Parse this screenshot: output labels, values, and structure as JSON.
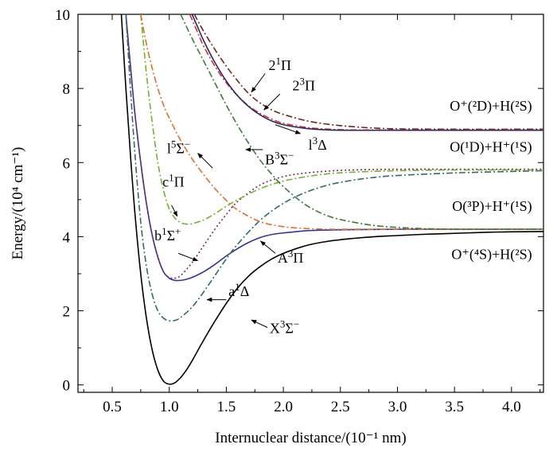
{
  "chart_data": {
    "type": "line",
    "xlabel": "Internuclear distance/(10⁻¹ nm)",
    "ylabel": "Energy/(10⁴ cm⁻¹)",
    "xlim": [
      0.2,
      4.28
    ],
    "ylim": [
      -0.2,
      10
    ],
    "xticks": [
      0.5,
      1.0,
      1.5,
      2.0,
      2.5,
      3.0,
      3.5,
      4.0
    ],
    "xtick_labels": [
      "0.5",
      "1.0",
      "1.5",
      "2.0",
      "2.5",
      "3.0",
      "3.5",
      "4.0"
    ],
    "yticks": [
      0,
      2,
      4,
      6,
      8,
      10
    ],
    "ytick_labels": [
      "0",
      "2",
      "4",
      "6",
      "8",
      "10"
    ],
    "grid": false,
    "series": [
      {
        "name": "X³Σ⁻",
        "color": "#000000",
        "style": "solid",
        "x": [
          0.58,
          0.62,
          0.66,
          0.7,
          0.75,
          0.8,
          0.85,
          0.9,
          0.95,
          1.0,
          1.05,
          1.1,
          1.15,
          1.2,
          1.3,
          1.4,
          1.5,
          1.6,
          1.7,
          1.8,
          1.9,
          2.0,
          2.2,
          2.4,
          2.6,
          2.8,
          3.0,
          3.2,
          3.4,
          3.6,
          3.8,
          4.0,
          4.28
        ],
        "y": [
          10.0,
          8.0,
          6.2,
          4.6,
          3.0,
          1.8,
          0.95,
          0.4,
          0.1,
          0.02,
          0.06,
          0.2,
          0.4,
          0.65,
          1.2,
          1.72,
          2.2,
          2.62,
          2.95,
          3.2,
          3.4,
          3.55,
          3.76,
          3.88,
          3.95,
          4.0,
          4.03,
          4.06,
          4.08,
          4.1,
          4.12,
          4.13,
          4.14
        ]
      },
      {
        "name": "A³Π",
        "color": "#33339a",
        "style": "solid",
        "x": [
          0.62,
          0.66,
          0.7,
          0.75,
          0.8,
          0.85,
          0.9,
          0.95,
          1.0,
          1.05,
          1.1,
          1.15,
          1.2,
          1.3,
          1.4,
          1.5,
          1.6,
          1.7,
          1.8,
          1.9,
          2.0,
          2.2,
          2.4,
          2.6,
          3.0,
          3.5,
          4.0,
          4.28
        ],
        "y": [
          10.0,
          8.6,
          7.3,
          6.0,
          4.9,
          4.05,
          3.45,
          3.05,
          2.88,
          2.82,
          2.82,
          2.85,
          2.9,
          3.05,
          3.25,
          3.48,
          3.68,
          3.85,
          3.98,
          4.06,
          4.1,
          4.16,
          4.18,
          4.19,
          4.2,
          4.2,
          4.2,
          4.2
        ]
      },
      {
        "name": "b¹Σ⁺",
        "color": "#7a2a5a",
        "style": "dotted",
        "x": [
          0.62,
          0.66,
          0.7,
          0.75,
          0.8,
          0.85,
          0.9,
          0.95,
          1.0,
          1.05,
          1.1,
          1.2,
          1.3,
          1.4,
          1.5,
          1.6,
          1.8,
          2.0,
          2.2,
          2.4,
          2.6,
          3.0,
          3.5,
          4.0,
          4.28
        ],
        "y": [
          10.0,
          8.6,
          7.3,
          6.0,
          4.9,
          4.05,
          3.45,
          3.05,
          2.9,
          2.88,
          2.95,
          3.3,
          3.75,
          4.2,
          4.6,
          4.95,
          5.4,
          5.62,
          5.72,
          5.77,
          5.8,
          5.82,
          5.82,
          5.82,
          5.82
        ]
      },
      {
        "name": "a¹Δ",
        "color": "#2e6b6b",
        "style": "dashdot",
        "x": [
          0.62,
          0.66,
          0.7,
          0.75,
          0.8,
          0.85,
          0.9,
          0.95,
          1.0,
          1.05,
          1.1,
          1.2,
          1.3,
          1.4,
          1.5,
          1.6,
          1.8,
          2.0,
          2.2,
          2.4,
          2.6,
          2.8,
          3.0,
          3.5,
          4.0,
          4.28
        ],
        "y": [
          10.0,
          8.0,
          6.2,
          4.4,
          3.2,
          2.45,
          2.0,
          1.8,
          1.73,
          1.74,
          1.82,
          2.1,
          2.5,
          2.95,
          3.4,
          3.8,
          4.45,
          4.9,
          5.2,
          5.4,
          5.52,
          5.6,
          5.65,
          5.72,
          5.76,
          5.78
        ]
      },
      {
        "name": "c¹Π",
        "color": "#77b030",
        "style": "dashdot",
        "x": [
          0.75,
          0.8,
          0.85,
          0.9,
          0.95,
          1.0,
          1.05,
          1.1,
          1.15,
          1.2,
          1.3,
          1.4,
          1.5,
          1.6,
          1.8,
          2.0,
          2.2,
          2.4,
          2.6,
          3.0,
          3.5,
          4.0,
          4.28
        ],
        "y": [
          10.0,
          8.4,
          7.1,
          6.0,
          5.25,
          4.75,
          4.5,
          4.38,
          4.34,
          4.35,
          4.45,
          4.62,
          4.82,
          5.0,
          5.3,
          5.5,
          5.62,
          5.7,
          5.74,
          5.78,
          5.8,
          5.8,
          5.8
        ]
      },
      {
        "name": "l⁵Σ⁻",
        "color": "#e0702a",
        "style": "dashdot",
        "x": [
          0.75,
          0.8,
          0.85,
          0.9,
          0.95,
          1.0,
          1.1,
          1.2,
          1.3,
          1.4,
          1.5,
          1.6,
          1.8,
          2.0,
          2.2,
          2.4,
          2.6,
          3.0,
          3.5,
          4.0,
          4.28
        ],
        "y": [
          10.0,
          9.2,
          8.55,
          8.0,
          7.55,
          7.2,
          6.6,
          6.1,
          5.68,
          5.3,
          4.98,
          4.72,
          4.4,
          4.27,
          4.22,
          4.2,
          4.2,
          4.2,
          4.2,
          4.2,
          4.2
        ]
      },
      {
        "name": "B³Σ⁻",
        "color": "#3e7a3a",
        "style": "dashdot",
        "x": [
          1.1,
          1.2,
          1.3,
          1.4,
          1.5,
          1.6,
          1.7,
          1.8,
          1.9,
          2.0,
          2.2,
          2.4,
          2.6,
          2.8,
          3.0,
          3.2,
          3.5,
          4.0,
          4.28
        ],
        "y": [
          10.0,
          9.35,
          8.75,
          8.15,
          7.55,
          7.0,
          6.5,
          6.05,
          5.68,
          5.35,
          4.85,
          4.55,
          4.4,
          4.3,
          4.25,
          4.22,
          4.2,
          4.2,
          4.2
        ]
      },
      {
        "name": "2¹Π",
        "color": "#6b2a1a",
        "style": "dashdot",
        "x": [
          1.22,
          1.3,
          1.4,
          1.5,
          1.6,
          1.7,
          1.8,
          1.9,
          2.0,
          2.2,
          2.4,
          2.6,
          2.8,
          3.0,
          3.5,
          4.0,
          4.28
        ],
        "y": [
          10.0,
          9.55,
          9.05,
          8.6,
          8.2,
          7.85,
          7.6,
          7.42,
          7.3,
          7.13,
          7.03,
          6.97,
          6.93,
          6.91,
          6.9,
          6.9,
          6.9
        ]
      },
      {
        "name": "2³Π",
        "color": "#d43030",
        "style": "dashdot",
        "x": [
          1.18,
          1.25,
          1.3,
          1.4,
          1.5,
          1.6,
          1.7,
          1.8,
          1.9,
          2.0,
          2.2,
          2.4,
          2.6,
          2.8,
          3.0,
          3.5,
          4.0,
          4.28
        ],
        "y": [
          10.0,
          9.5,
          9.15,
          8.6,
          8.15,
          7.8,
          7.52,
          7.32,
          7.17,
          7.06,
          6.95,
          6.9,
          6.88,
          6.88,
          6.88,
          6.88,
          6.88,
          6.88
        ]
      },
      {
        "name": "1³Δ",
        "color": "#2a2a6a",
        "style": "solid",
        "x": [
          1.2,
          1.25,
          1.3,
          1.4,
          1.5,
          1.6,
          1.7,
          1.8,
          1.9,
          2.0,
          2.2,
          2.4,
          2.6,
          2.8,
          3.0,
          3.5,
          4.0,
          4.28
        ],
        "y": [
          10.0,
          9.65,
          9.3,
          8.7,
          8.2,
          7.8,
          7.5,
          7.28,
          7.12,
          7.02,
          6.92,
          6.88,
          6.87,
          6.87,
          6.87,
          6.87,
          6.87,
          6.87
        ]
      }
    ],
    "annotations": [
      {
        "id": "X3S",
        "base": "X",
        "sup1": "3",
        "mid": "Σ",
        "sup2": "−",
        "mid2": "",
        "text_x": 1.88,
        "text_y": 1.4,
        "arrow_from": [
          1.86,
          1.55
        ],
        "arrow_to": [
          1.72,
          1.75
        ]
      },
      {
        "id": "A3P",
        "base": "A",
        "sup1": "3",
        "mid": "Π",
        "sup2": "",
        "mid2": "",
        "text_x": 1.95,
        "text_y": 3.3,
        "arrow_from": [
          1.93,
          3.55
        ],
        "arrow_to": [
          1.8,
          3.88
        ]
      },
      {
        "id": "a1D",
        "base": "a",
        "sup1": "1",
        "mid": "Δ",
        "sup2": "",
        "mid2": "",
        "text_x": 1.52,
        "text_y": 2.4,
        "arrow_from": [
          1.5,
          2.3
        ],
        "arrow_to": [
          1.33,
          2.3
        ]
      },
      {
        "id": "b1S",
        "base": "b",
        "sup1": "1",
        "mid": "Σ",
        "sup2": "+",
        "mid2": "",
        "text_x": 0.87,
        "text_y": 3.9,
        "arrow_from": [
          1.08,
          3.55
        ],
        "arrow_to": [
          1.25,
          3.35
        ]
      },
      {
        "id": "c1P",
        "base": "c",
        "sup1": "1",
        "mid": "Π",
        "sup2": "",
        "mid2": "",
        "text_x": 0.94,
        "text_y": 5.35,
        "arrow_from": [
          1.02,
          4.85
        ],
        "arrow_to": [
          1.07,
          4.55
        ]
      },
      {
        "id": "l5S",
        "base": "l",
        "sup1": "5",
        "mid": "Σ",
        "sup2": "−",
        "mid2": "",
        "text_x": 0.98,
        "text_y": 6.25,
        "arrow_from": [
          1.38,
          5.85
        ],
        "arrow_to": [
          1.25,
          6.25
        ]
      },
      {
        "id": "B3S",
        "base": "B",
        "sup1": "3",
        "mid": "Σ",
        "sup2": "−",
        "mid2": "",
        "text_x": 1.84,
        "text_y": 5.95,
        "arrow_from": [
          1.82,
          6.35
        ],
        "arrow_to": [
          1.67,
          6.35
        ]
      },
      {
        "id": "l3D",
        "base": "l",
        "sup1": "3",
        "mid": "Δ",
        "sup2": "",
        "mid2": "",
        "text_x": 2.22,
        "text_y": 6.35,
        "arrow_from": [
          1.93,
          7.02
        ],
        "arrow_to": [
          2.15,
          6.78
        ]
      },
      {
        "id": "21P",
        "base": "2",
        "sup1": "1",
        "mid": "Π",
        "sup2": "",
        "mid2": "",
        "text_x": 1.87,
        "text_y": 8.5,
        "arrow_from": [
          1.84,
          8.4
        ],
        "arrow_to": [
          1.72,
          7.9
        ]
      },
      {
        "id": "23P",
        "base": "2",
        "sup1": "3",
        "mid": "Π",
        "sup2": "",
        "mid2": "",
        "text_x": 2.08,
        "text_y": 7.95,
        "arrow_from": [
          1.97,
          7.85
        ],
        "arrow_to": [
          1.83,
          7.42
        ]
      }
    ],
    "asymptote_labels": [
      {
        "id": "o2d",
        "text": "O⁺(²D)+H(²S)",
        "anchor_x": 4.18,
        "y": 7.4
      },
      {
        "id": "o1d",
        "text": "O(¹D)+H⁺(¹S)",
        "anchor_x": 4.18,
        "y": 6.3
      },
      {
        "id": "o3p",
        "text": "O(³P)+H⁺(¹S)",
        "anchor_x": 4.18,
        "y": 4.7
      },
      {
        "id": "o4s",
        "text": "O⁺(⁴S)+H(²S)",
        "anchor_x": 4.18,
        "y": 3.4
      }
    ]
  }
}
